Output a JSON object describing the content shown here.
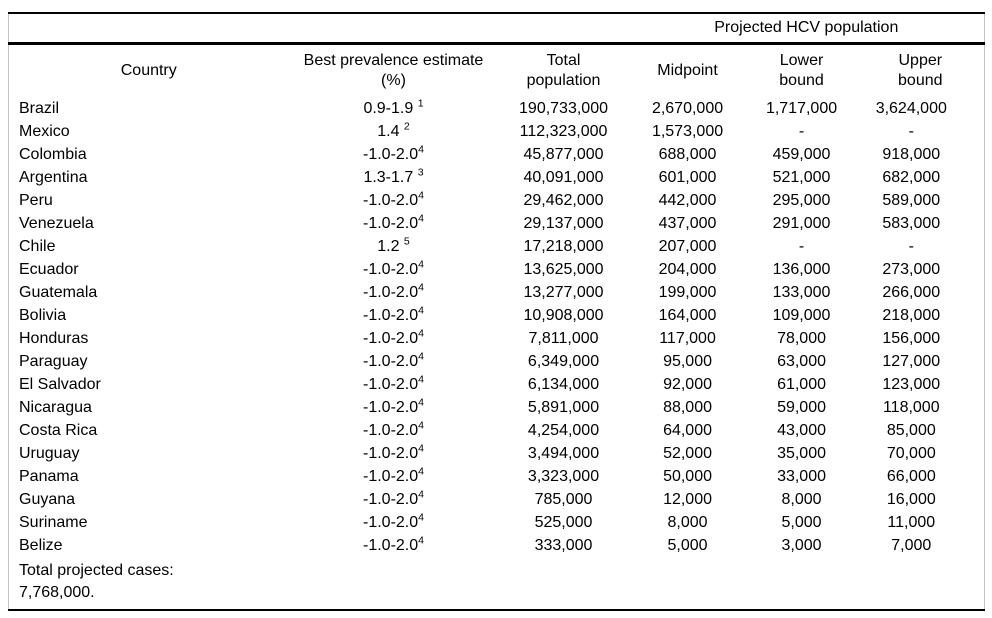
{
  "table": {
    "spanning_header": "Projected HCV population",
    "columns": [
      "Country",
      "Best prevalence estimate\n(%)",
      "Total\npopulation",
      "Midpoint",
      "Lower\nbound",
      "Upper\nbound"
    ],
    "rows": [
      {
        "country": "Brazil",
        "prev": "0.9-1.9 ",
        "sup": "1",
        "total": "190,733,000",
        "midpoint": "2,670,000",
        "lower": "1,717,000",
        "upper": "3,624,000"
      },
      {
        "country": "Mexico",
        "prev": "1.4 ",
        "sup": "2",
        "total": "112,323,000",
        "midpoint": "1,573,000",
        "lower": "-",
        "upper": "-"
      },
      {
        "country": "Colombia",
        "prev": "-1.0-2.0",
        "sup": "4",
        "total": "45,877,000",
        "midpoint": "688,000",
        "lower": "459,000",
        "upper": "918,000"
      },
      {
        "country": "Argentina",
        "prev": "1.3-1.7 ",
        "sup": "3",
        "total": "40,091,000",
        "midpoint": "601,000",
        "lower": "521,000",
        "upper": "682,000"
      },
      {
        "country": "Peru",
        "prev": "-1.0-2.0",
        "sup": "4",
        "total": "29,462,000",
        "midpoint": "442,000",
        "lower": "295,000",
        "upper": "589,000"
      },
      {
        "country": "Venezuela",
        "prev": "-1.0-2.0",
        "sup": "4",
        "total": "29,137,000",
        "midpoint": "437,000",
        "lower": "291,000",
        "upper": "583,000"
      },
      {
        "country": "Chile",
        "prev": "1.2 ",
        "sup": "5",
        "total": "17,218,000",
        "midpoint": "207,000",
        "lower": "-",
        "upper": "-"
      },
      {
        "country": "Ecuador",
        "prev": "-1.0-2.0",
        "sup": "4",
        "total": "13,625,000",
        "midpoint": "204,000",
        "lower": "136,000",
        "upper": "273,000"
      },
      {
        "country": "Guatemala",
        "prev": "-1.0-2.0",
        "sup": "4",
        "total": "13,277,000",
        "midpoint": "199,000",
        "lower": "133,000",
        "upper": "266,000"
      },
      {
        "country": "Bolivia",
        "prev": "-1.0-2.0",
        "sup": "4",
        "total": "10,908,000",
        "midpoint": "164,000",
        "lower": "109,000",
        "upper": "218,000"
      },
      {
        "country": "Honduras",
        "prev": "-1.0-2.0",
        "sup": "4",
        "total": "7,811,000",
        "midpoint": "117,000",
        "lower": "78,000",
        "upper": "156,000"
      },
      {
        "country": "Paraguay",
        "prev": "-1.0-2.0",
        "sup": "4",
        "total": "6,349,000",
        "midpoint": "95,000",
        "lower": "63,000",
        "upper": "127,000"
      },
      {
        "country": "El Salvador",
        "prev": "-1.0-2.0",
        "sup": "4",
        "total": "6,134,000",
        "midpoint": "92,000",
        "lower": "61,000",
        "upper": "123,000"
      },
      {
        "country": "Nicaragua",
        "prev": "-1.0-2.0",
        "sup": "4",
        "total": "5,891,000",
        "midpoint": "88,000",
        "lower": "59,000",
        "upper": "118,000"
      },
      {
        "country": "Costa Rica",
        "prev": "-1.0-2.0",
        "sup": "4",
        "total": "4,254,000",
        "midpoint": "64,000",
        "lower": "43,000",
        "upper": "85,000"
      },
      {
        "country": "Uruguay",
        "prev": "-1.0-2.0",
        "sup": "4",
        "total": "3,494,000",
        "midpoint": "52,000",
        "lower": "35,000",
        "upper": "70,000"
      },
      {
        "country": "Panama",
        "prev": "-1.0-2.0",
        "sup": "4",
        "total": "3,323,000",
        "midpoint": "50,000",
        "lower": "33,000",
        "upper": "66,000"
      },
      {
        "country": "Guyana",
        "prev": "-1.0-2.0",
        "sup": "4",
        "total": "785,000",
        "midpoint": "12,000",
        "lower": "8,000",
        "upper": "16,000"
      },
      {
        "country": "Suriname",
        "prev": "-1.0-2.0",
        "sup": "4",
        "total": "525,000",
        "midpoint": "8,000",
        "lower": "5,000",
        "upper": "11,000"
      },
      {
        "country": "Belize",
        "prev": "-1.0-2.0",
        "sup": "4",
        "total": "333,000",
        "midpoint": "5,000",
        "lower": "3,000",
        "upper": "7,000"
      }
    ],
    "footer": {
      "line1": "Total projected cases:",
      "line2": "7,768,000."
    },
    "colors": {
      "rule": "#000000",
      "side_border": "#c4c4c4",
      "text": "#000000",
      "background": "#ffffff"
    }
  }
}
